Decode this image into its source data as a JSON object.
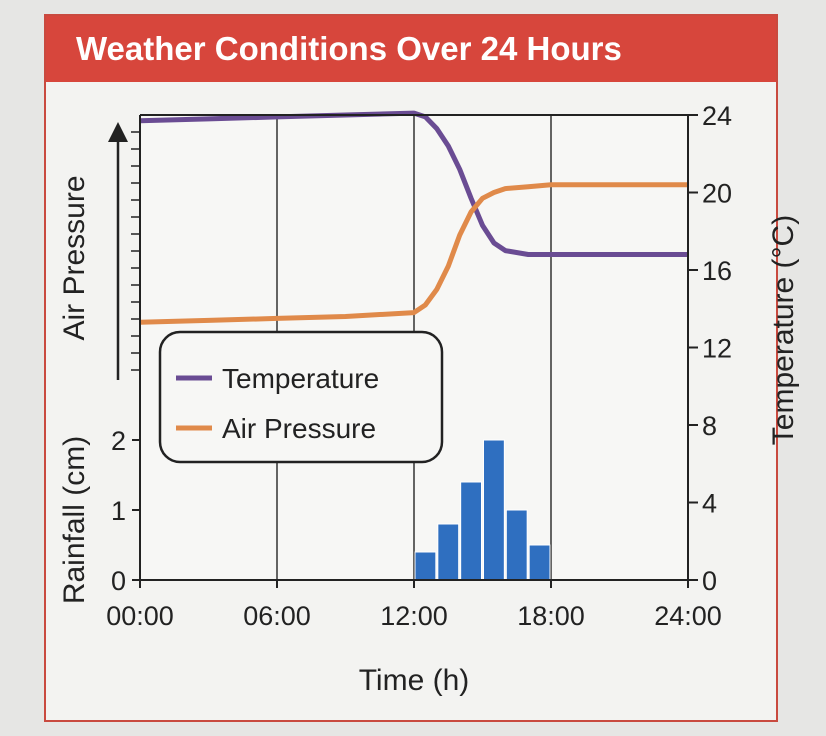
{
  "title": "Weather Conditions Over 24 Hours",
  "colors": {
    "header": "#d7463c",
    "temperature": "#6a4c93",
    "air_pressure": "#e08a4a",
    "rainfall": "#2f6fc0"
  },
  "chart_data": {
    "type": "line",
    "title": "Weather Conditions Over 24 Hours",
    "xlabel": "Time (h)",
    "x_ticks": [
      "00:00",
      "06:00",
      "12:00",
      "18:00",
      "24:00"
    ],
    "xlim": [
      0,
      24
    ],
    "y_right": {
      "label": "Temperature (°C)",
      "ticks": [
        "0",
        "4",
        "8",
        "12",
        "16",
        "20",
        "24"
      ],
      "ylim": [
        0,
        24
      ]
    },
    "y_left_upper": {
      "label": "Air Pressure"
    },
    "y_left_lower": {
      "label": "Rainfall (cm)",
      "ticks": [
        "0",
        "1",
        "2"
      ],
      "ylim": [
        0,
        2
      ]
    },
    "series": [
      {
        "name": "Temperature",
        "axis": "temperature",
        "x": [
          0,
          3,
          6,
          9,
          12,
          12.5,
          13,
          13.5,
          14,
          14.5,
          15,
          15.5,
          16,
          17,
          18,
          21,
          24
        ],
        "y": [
          23.7,
          23.8,
          23.9,
          24.0,
          24.1,
          23.9,
          23.3,
          22.4,
          21.2,
          19.7,
          18.3,
          17.4,
          17.0,
          16.8,
          16.8,
          16.8,
          16.8
        ]
      },
      {
        "name": "Air Pressure",
        "axis": "temperature",
        "x": [
          0,
          3,
          6,
          9,
          12,
          12.5,
          13,
          13.5,
          14,
          14.5,
          15,
          15.5,
          16,
          17,
          18,
          21,
          24
        ],
        "y": [
          13.3,
          13.4,
          13.5,
          13.6,
          13.8,
          14.2,
          15.0,
          16.2,
          17.8,
          19.0,
          19.7,
          20.0,
          20.2,
          20.3,
          20.4,
          20.4,
          20.4
        ]
      }
    ],
    "rainfall": {
      "name": "Rainfall",
      "x_start": [
        12,
        13,
        14,
        15,
        16,
        17
      ],
      "x_end": [
        13,
        14,
        15,
        16,
        17,
        18
      ],
      "values": [
        0.4,
        0.8,
        1.4,
        2.0,
        1.0,
        0.5
      ]
    },
    "legend": {
      "placement": "center-left",
      "entries": [
        "Temperature",
        "Air Pressure"
      ]
    },
    "grid": "vertical"
  }
}
